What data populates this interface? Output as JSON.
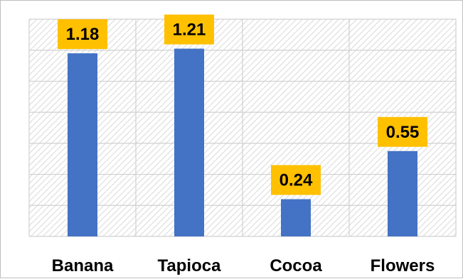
{
  "chart_data": {
    "type": "bar",
    "categories": [
      "Banana",
      "Tapioca",
      "Cocoa",
      "Flowers"
    ],
    "values": [
      1.18,
      1.21,
      0.24,
      0.55
    ],
    "value_labels": [
      "1.18",
      "1.21",
      "0.24",
      "0.55"
    ],
    "title": "",
    "xlabel": "",
    "ylabel": "",
    "ylim": [
      0,
      1.4
    ],
    "grid": true,
    "legend": "none",
    "colors": {
      "bar": "#4472C4",
      "label_box": "#FFC000",
      "grid": "#d0d0d0",
      "hatch": "#d9d9d9"
    }
  }
}
